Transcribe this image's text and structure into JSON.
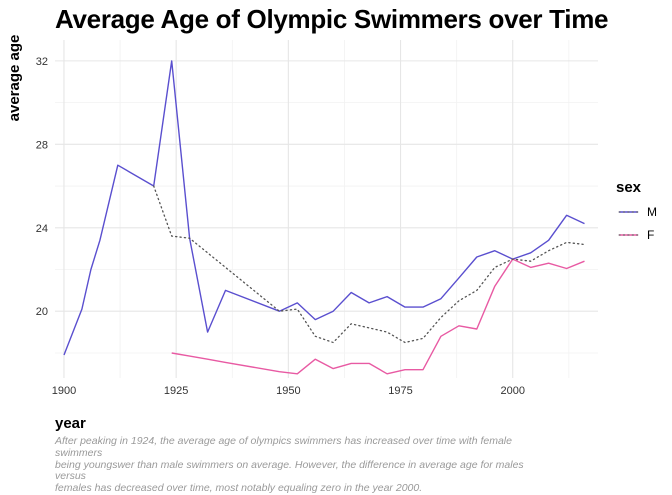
{
  "chart_data": {
    "type": "line",
    "title": "Average Age of Olympic Swimmers over Time",
    "xlabel": "year",
    "ylabel": "average age",
    "caption": "After peaking in 1924, the average age of olympics swimmers has increased over time with female swimmers\n being youngswer than male swimmers on average. However, the difference in average age for males versus\n females has decreased over time, most notably equaling zero in the year 2000.",
    "xlim": [
      1898,
      2019
    ],
    "ylim": [
      16.8,
      33.0
    ],
    "x_ticks": [
      1900,
      1925,
      1950,
      1975,
      2000
    ],
    "y_ticks": [
      20,
      24,
      28,
      32
    ],
    "grid": true,
    "legend": {
      "title": "sex",
      "position": "right",
      "entries": [
        "M",
        "F"
      ]
    },
    "series": [
      {
        "name": "M",
        "color": "#5a4fcf",
        "style": "solid",
        "x": [
          1900,
          1904,
          1906,
          1908,
          1912,
          1920,
          1924,
          1928,
          1932,
          1936,
          1948,
          1952,
          1956,
          1960,
          1964,
          1968,
          1972,
          1976,
          1980,
          1984,
          1988,
          1992,
          1996,
          2000,
          2004,
          2008,
          2012,
          2016
        ],
        "y": [
          17.9,
          20.1,
          22.0,
          23.4,
          27.0,
          26.0,
          32.0,
          23.5,
          19.0,
          21.0,
          20.0,
          20.4,
          19.6,
          20.0,
          20.9,
          20.4,
          20.7,
          20.2,
          20.2,
          20.6,
          21.6,
          22.6,
          22.9,
          22.5,
          22.8,
          23.4,
          24.6,
          24.2
        ]
      },
      {
        "name": "F",
        "color": "#e85aa3",
        "style": "solid",
        "x": [
          1924,
          1928,
          1932,
          1936,
          1948,
          1952,
          1956,
          1960,
          1964,
          1968,
          1972,
          1976,
          1980,
          1984,
          1988,
          1992,
          1996,
          2000,
          2004,
          2008,
          2012,
          2016
        ],
        "y": [
          18.0,
          17.85,
          17.7,
          17.55,
          17.1,
          17.0,
          17.7,
          17.25,
          17.5,
          17.5,
          17.0,
          17.2,
          17.2,
          18.8,
          19.3,
          19.15,
          21.2,
          22.5,
          22.1,
          22.3,
          22.05,
          22.4
        ]
      },
      {
        "name": "",
        "color": "#555555",
        "style": "dotted",
        "x": [
          1920,
          1924,
          1928,
          1948,
          1952,
          1956,
          1960,
          1964,
          1968,
          1972,
          1976,
          1980,
          1984,
          1988,
          1992,
          1996,
          2000,
          2004,
          2008,
          2012,
          2016
        ],
        "y": [
          26.0,
          23.6,
          23.5,
          20.0,
          20.1,
          18.8,
          18.5,
          19.4,
          19.2,
          19.0,
          18.5,
          18.7,
          19.7,
          20.5,
          21.0,
          22.1,
          22.5,
          22.4,
          22.9,
          23.3,
          23.2
        ]
      }
    ]
  }
}
